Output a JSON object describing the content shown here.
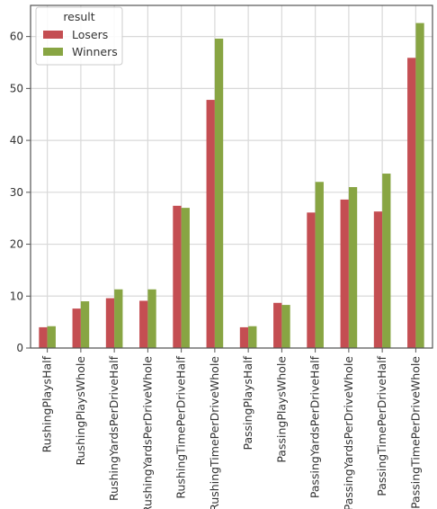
{
  "chart_data": {
    "type": "bar",
    "categories": [
      "RushingPlaysHalf",
      "RushingPlaysWhole",
      "RushingYardsPerDriveHalf",
      "RushingYardsPerDriveWhole",
      "RushingTimePerDriveHalf",
      "RushingTimePerDriveWhole",
      "PassingPlaysHalf",
      "PassingPlaysWhole",
      "PassingYardsPerDriveHalf",
      "PassingYardsPerDriveWhole",
      "PassingTimePerDriveHalf",
      "PassingTimePerDriveWhole"
    ],
    "series": [
      {
        "name": "Losers",
        "color": "#c44e52",
        "values": [
          4.0,
          7.6,
          9.6,
          9.1,
          27.4,
          47.8,
          4.0,
          8.7,
          26.1,
          28.6,
          26.3,
          55.9
        ]
      },
      {
        "name": "Winners",
        "color": "#88a543",
        "values": [
          4.2,
          9.0,
          11.3,
          11.3,
          27.0,
          59.6,
          4.2,
          8.3,
          32.0,
          31.0,
          33.6,
          62.6
        ]
      }
    ],
    "legend": {
      "title": "result",
      "placement": "top-left"
    },
    "ylim": [
      0,
      66
    ],
    "yticks": [
      0,
      10,
      20,
      30,
      40,
      50,
      60
    ],
    "xlabel": "",
    "ylabel": "",
    "title": "",
    "grid": true
  }
}
